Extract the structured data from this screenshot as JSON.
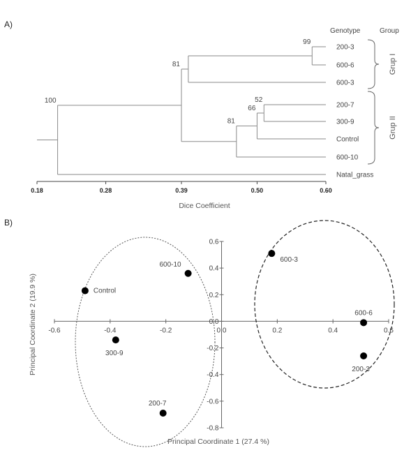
{
  "chart_data": [
    {
      "type": "dendrogram",
      "panel_label": "A)",
      "header": {
        "genotype": "Genotype",
        "group": "Group"
      },
      "xlabel": "Dice Coefficient",
      "x_ticks": [
        "0.18",
        "0.28",
        "0.39",
        "0.50",
        "0.60"
      ],
      "xlim": [
        0.18,
        0.6
      ],
      "leaves": [
        "200-3",
        "600-6",
        "600-3",
        "200-7",
        "300-9",
        "Control",
        "600-10",
        "Natal_grass"
      ],
      "nodes": [
        {
          "id": "n1",
          "members": [
            "200-3",
            "600-6"
          ],
          "similarity": 0.58,
          "bootstrap": "99"
        },
        {
          "id": "n2",
          "members": [
            "n1",
            "600-3"
          ],
          "similarity": 0.4,
          "bootstrap": ""
        },
        {
          "id": "n3",
          "members": [
            "200-7",
            "300-9"
          ],
          "similarity": 0.51,
          "bootstrap": "52"
        },
        {
          "id": "n4",
          "members": [
            "n3",
            "Control"
          ],
          "similarity": 0.5,
          "bootstrap": "66"
        },
        {
          "id": "n5",
          "members": [
            "n4",
            "600-10"
          ],
          "similarity": 0.47,
          "bootstrap": "81"
        },
        {
          "id": "n6",
          "members": [
            "n2",
            "n5"
          ],
          "similarity": 0.39,
          "bootstrap": "81"
        },
        {
          "id": "n7",
          "members": [
            "n6",
            "Natal_grass"
          ],
          "similarity": 0.21,
          "bootstrap": "100"
        }
      ],
      "groups": [
        {
          "label": "Grup I",
          "members": [
            "200-3",
            "600-6",
            "600-3"
          ]
        },
        {
          "label": "Grup II",
          "members": [
            "200-7",
            "300-9",
            "Control",
            "600-10"
          ]
        }
      ]
    },
    {
      "type": "scatter",
      "panel_label": "B)",
      "xlabel": "Principal Coordinate 1 (27.4 %)",
      "ylabel": "Principal Coordinate 2 (19.9 %)",
      "xlim": [
        -0.6,
        0.6
      ],
      "ylim": [
        -0.8,
        0.6
      ],
      "x_ticks": [
        "-0.6",
        "-0.4",
        "-0.2",
        "0.0",
        "0.2",
        "0.4",
        "0.6"
      ],
      "y_ticks": [
        "0.6",
        "0.4",
        "0.2",
        "0.0",
        "-0.2",
        "-0.4",
        "-0.6",
        "-0.8"
      ],
      "points": [
        {
          "label": "Control",
          "x": -0.49,
          "y": 0.23
        },
        {
          "label": "600-10",
          "x": -0.12,
          "y": 0.36
        },
        {
          "label": "300-9",
          "x": -0.38,
          "y": -0.14
        },
        {
          "label": "200-7",
          "x": -0.21,
          "y": -0.69
        },
        {
          "label": "600-3",
          "x": 0.18,
          "y": 0.51
        },
        {
          "label": "600-6",
          "x": 0.51,
          "y": -0.01
        },
        {
          "label": "200-3",
          "x": 0.51,
          "y": -0.26
        }
      ]
    }
  ]
}
